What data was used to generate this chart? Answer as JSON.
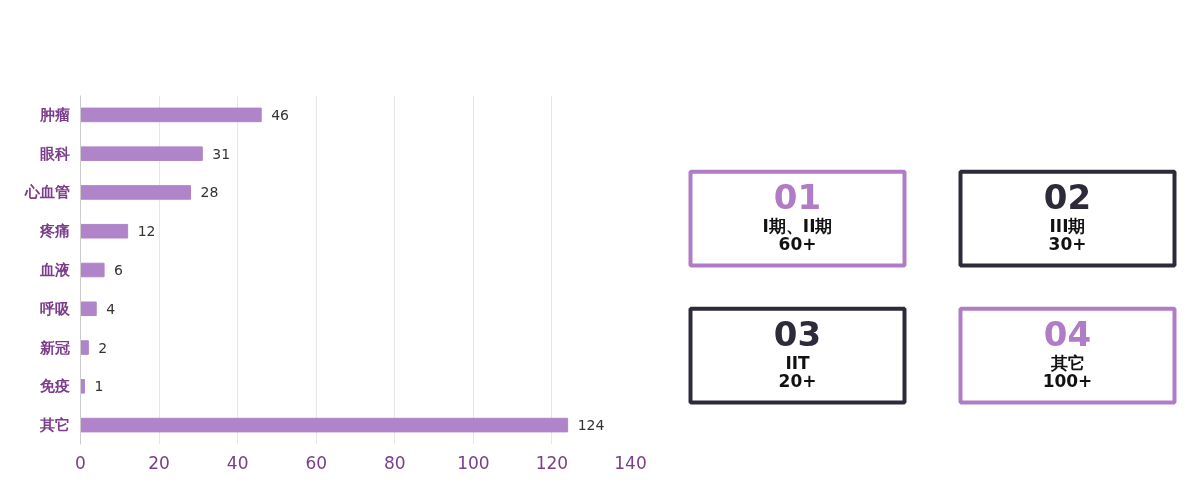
{
  "chart_data": [
    {
      "type": "bar",
      "orientation": "horizontal",
      "categories": [
        "肿瘤",
        "眼科",
        "心血管",
        "疼痛",
        "血液",
        "呼吸",
        "新冠",
        "免疫",
        "其它"
      ],
      "values": [
        46,
        31,
        28,
        12,
        6,
        4,
        2,
        1,
        124
      ],
      "color": "#b084c8",
      "xlim": [
        0,
        140
      ],
      "xticks": [
        0,
        20,
        40,
        60,
        80,
        100,
        120,
        140
      ],
      "grid": "x",
      "data_labels": true
    },
    {
      "type": "other",
      "colors": [
        "#b07cc6",
        "#2e2a3a",
        "#2e2a3a",
        "#b07cc6"
      ],
      "annotations": [
        "01",
        "I期、II期",
        "60+",
        "02",
        "III期",
        "30+",
        "03",
        "IIT",
        "20+",
        "04",
        "其它",
        "100+"
      ]
    }
  ]
}
